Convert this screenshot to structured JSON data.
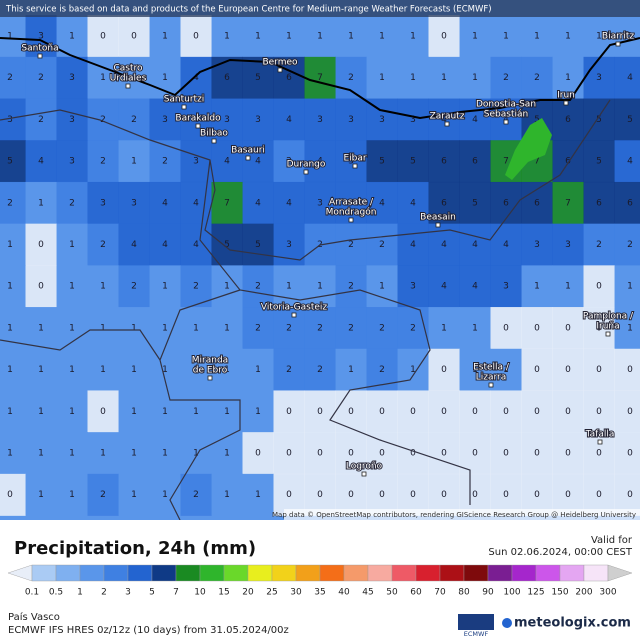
{
  "header": "This service is based on data and products of the European Centre for Medium-range Weather Forecasts (ECMWF)",
  "attribution": "Map data © OpenStreetMap contributors, rendering GIScience Research Group @ Heidelberg University",
  "grid": [
    [
      1,
      3,
      1,
      0,
      0,
      1,
      0,
      1,
      1,
      1,
      1,
      1,
      1,
      1,
      0,
      1,
      1,
      1,
      1,
      1,
      1
    ],
    [
      2,
      2,
      3,
      1,
      1,
      1,
      4,
      6,
      5,
      6,
      7,
      2,
      1,
      1,
      1,
      1,
      2,
      2,
      1,
      3,
      4
    ],
    [
      3,
      2,
      3,
      2,
      2,
      3,
      4,
      3,
      3,
      4,
      3,
      3,
      3,
      3,
      4,
      4,
      4,
      5,
      6,
      5,
      5
    ],
    [
      5,
      4,
      3,
      2,
      1,
      2,
      3,
      4,
      4,
      2,
      4,
      3,
      5,
      5,
      6,
      6,
      7,
      7,
      6,
      5,
      4
    ],
    [
      2,
      1,
      2,
      3,
      3,
      4,
      4,
      7,
      4,
      4,
      3,
      3,
      4,
      4,
      6,
      5,
      6,
      6,
      7,
      6,
      6
    ],
    [
      1,
      0,
      1,
      2,
      4,
      4,
      4,
      5,
      5,
      3,
      2,
      2,
      2,
      4,
      4,
      4,
      4,
      3,
      3,
      2,
      2
    ],
    [
      1,
      0,
      1,
      1,
      2,
      1,
      2,
      1,
      2,
      1,
      1,
      2,
      1,
      3,
      4,
      4,
      3,
      1,
      1,
      0,
      1
    ],
    [
      1,
      1,
      1,
      1,
      1,
      1,
      1,
      1,
      2,
      2,
      2,
      2,
      2,
      2,
      1,
      1,
      0,
      0,
      0,
      0,
      1
    ],
    [
      1,
      1,
      1,
      1,
      1,
      1,
      1,
      1,
      1,
      2,
      2,
      1,
      2,
      1,
      0,
      1,
      1,
      0,
      0,
      0,
      0
    ],
    [
      1,
      1,
      1,
      0,
      1,
      1,
      1,
      1,
      1,
      0,
      0,
      0,
      0,
      0,
      0,
      0,
      0,
      0,
      0,
      0,
      0
    ],
    [
      1,
      1,
      1,
      1,
      1,
      1,
      1,
      1,
      0,
      0,
      0,
      0,
      0,
      0,
      0,
      0,
      0,
      0,
      0,
      0,
      0
    ],
    [
      0,
      1,
      1,
      2,
      1,
      1,
      2,
      1,
      1,
      0,
      0,
      0,
      0,
      0,
      0,
      0,
      0,
      0,
      0,
      0,
      0
    ]
  ],
  "cities": [
    {
      "label": [
        "Santoña"
      ],
      "pos": "40,48"
    },
    {
      "label": [
        "Castro",
        "Urdiales"
      ],
      "pos": "128,68"
    },
    {
      "label": [
        "Bermeo"
      ],
      "pos": "280,62"
    },
    {
      "label": [
        "Biarritz"
      ],
      "pos": "618,36"
    },
    {
      "label": [
        "Santurtzi"
      ],
      "pos": "184,99"
    },
    {
      "label": [
        "Barakaldo"
      ],
      "pos": "198,118"
    },
    {
      "label": [
        "Bilbao"
      ],
      "pos": "214,133"
    },
    {
      "label": [
        "Basauri"
      ],
      "pos": "248,150"
    },
    {
      "label": [
        "Donostia-San",
        "Sebastián"
      ],
      "pos": "506,104"
    },
    {
      "label": [
        "Irun"
      ],
      "pos": "566,95"
    },
    {
      "label": [
        "Zarautz"
      ],
      "pos": "447,116"
    },
    {
      "label": [
        "Durango"
      ],
      "pos": "306,164"
    },
    {
      "label": [
        "Eibar"
      ],
      "pos": "355,158"
    },
    {
      "label": [
        "Arrasate /",
        "Mondragón"
      ],
      "pos": "351,202"
    },
    {
      "label": [
        "Beasain"
      ],
      "pos": "438,217"
    },
    {
      "label": [
        "Vitoria-Gasteiz"
      ],
      "pos": "294,307"
    },
    {
      "label": [
        "Pamplona /",
        "Iruña"
      ],
      "pos": "608,316"
    },
    {
      "label": [
        "Miranda",
        "de Ebro"
      ],
      "pos": "210,360"
    },
    {
      "label": [
        "Estella /",
        "Lizarra"
      ],
      "pos": "491,367"
    },
    {
      "label": [
        "Tafalla"
      ],
      "pos": "600,434"
    },
    {
      "label": [
        "Logroño"
      ],
      "pos": "364,466"
    }
  ],
  "legend": {
    "title": "Precipitation, 24h (mm)",
    "ticks": [
      0.1,
      0.5,
      1,
      2,
      3,
      5,
      7,
      10,
      15,
      20,
      25,
      30,
      35,
      40,
      45,
      50,
      60,
      70,
      80,
      90,
      100,
      125,
      150,
      200,
      300
    ],
    "colors": [
      "#e8eef8",
      "#aacbf4",
      "#7fb0f0",
      "#5a96ea",
      "#3f80e2",
      "#2364d0",
      "#0f3a86",
      "#1a8a22",
      "#2fb52c",
      "#6ad82a",
      "#e8ee1e",
      "#f2d21a",
      "#f2a01a",
      "#f46e18",
      "#f59a6a",
      "#f7aaa0",
      "#ee5a66",
      "#d8202e",
      "#ac1016",
      "#7e0a0c",
      "#7a1e92",
      "#a526cc",
      "#cc56ea",
      "#e4a6f2",
      "#f6e4f8",
      "#cfcfcf"
    ]
  },
  "valid_label": "Valid for",
  "valid_time": "Sun 02.06.2024, 00:00 CEST",
  "region": "País Vasco",
  "model": "ECMWF IFS HRES 0z/12z (10 days) from 31.05.2024/00z",
  "logo_ecmwf": "ECMWF",
  "brand": "meteologix.com"
}
